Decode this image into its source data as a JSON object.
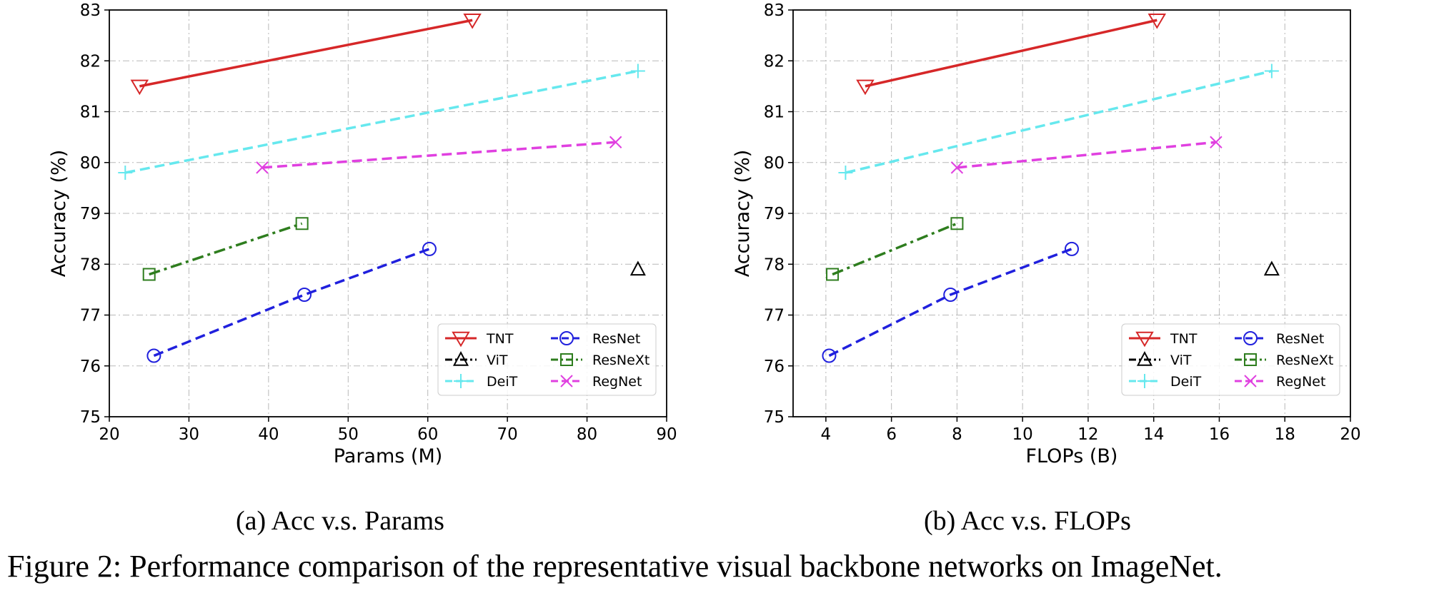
{
  "chart_data": [
    {
      "type": "line",
      "title": "",
      "xlabel": "Params (M)",
      "ylabel": "Accuracy (%)",
      "xlim": [
        20,
        90
      ],
      "ylim": [
        75,
        83
      ],
      "xticks": [
        20,
        30,
        40,
        50,
        60,
        70,
        80,
        90
      ],
      "yticks": [
        75,
        76,
        77,
        78,
        79,
        80,
        81,
        82,
        83
      ],
      "grid": true,
      "legend_position": "lower-right",
      "subcaption": "(a) Acc v.s. Params",
      "series": [
        {
          "name": "TNT",
          "color": "#d62728",
          "dash": "solid",
          "marker": "triangle-down",
          "x": [
            23.8,
            65.6
          ],
          "y": [
            81.5,
            82.8
          ]
        },
        {
          "name": "ViT",
          "color": "#000000",
          "dash": "dashdot",
          "marker": "triangle-up",
          "x": [
            86.4
          ],
          "y": [
            77.9
          ]
        },
        {
          "name": "DeiT",
          "color": "#66e8ee",
          "dash": "dashed",
          "marker": "plus",
          "x": [
            22,
            86.4
          ],
          "y": [
            79.8,
            81.8
          ]
        },
        {
          "name": "ResNet",
          "color": "#2020dd",
          "dash": "dashed",
          "marker": "circle",
          "x": [
            25.6,
            44.5,
            60.2
          ],
          "y": [
            76.2,
            77.4,
            78.3
          ]
        },
        {
          "name": "ResNeXt",
          "color": "#2e7d1e",
          "dash": "dashdot",
          "marker": "square",
          "x": [
            25,
            44.2
          ],
          "y": [
            77.8,
            78.8
          ]
        },
        {
          "name": "RegNet",
          "color": "#e040e0",
          "dash": "dashed",
          "marker": "x",
          "x": [
            39.2,
            83.6
          ],
          "y": [
            79.9,
            80.4
          ]
        }
      ]
    },
    {
      "type": "line",
      "title": "",
      "xlabel": "FLOPs (B)",
      "ylabel": "Accuracy (%)",
      "xlim": [
        3,
        20
      ],
      "ylim": [
        75,
        83
      ],
      "xticks": [
        4,
        6,
        8,
        10,
        12,
        14,
        16,
        18,
        20
      ],
      "yticks": [
        75,
        76,
        77,
        78,
        79,
        80,
        81,
        82,
        83
      ],
      "grid": true,
      "legend_position": "lower-right",
      "subcaption": "(b) Acc v.s. FLOPs",
      "series": [
        {
          "name": "TNT",
          "color": "#d62728",
          "dash": "solid",
          "marker": "triangle-down",
          "x": [
            5.2,
            14.1
          ],
          "y": [
            81.5,
            82.8
          ]
        },
        {
          "name": "ViT",
          "color": "#000000",
          "dash": "dashdot",
          "marker": "triangle-up",
          "x": [
            17.6
          ],
          "y": [
            77.9
          ]
        },
        {
          "name": "DeiT",
          "color": "#66e8ee",
          "dash": "dashed",
          "marker": "plus",
          "x": [
            4.6,
            17.6
          ],
          "y": [
            79.8,
            81.8
          ]
        },
        {
          "name": "ResNet",
          "color": "#2020dd",
          "dash": "dashed",
          "marker": "circle",
          "x": [
            4.1,
            7.8,
            11.5
          ],
          "y": [
            76.2,
            77.4,
            78.3
          ]
        },
        {
          "name": "ResNeXt",
          "color": "#2e7d1e",
          "dash": "dashdot",
          "marker": "square",
          "x": [
            4.2,
            8.0
          ],
          "y": [
            77.8,
            78.8
          ]
        },
        {
          "name": "RegNet",
          "color": "#e040e0",
          "dash": "dashed",
          "marker": "x",
          "x": [
            8.0,
            15.9
          ],
          "y": [
            79.9,
            80.4
          ]
        }
      ]
    }
  ],
  "figure_caption": "Figure 2: Performance comparison of the representative visual backbone networks on ImageNet."
}
